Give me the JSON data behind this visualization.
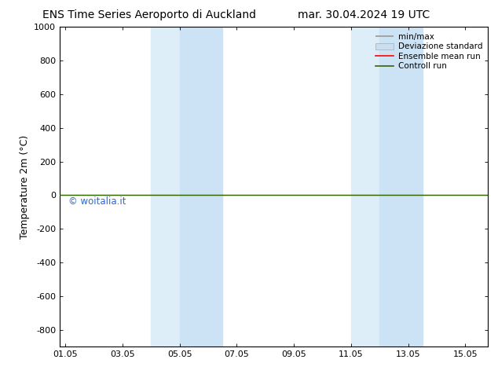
{
  "title_left": "ENS Time Series Aeroporto di Auckland",
  "title_right": "mar. 30.04.2024 19 UTC",
  "ylabel": "Temperature 2m (°C)",
  "ylim": [
    -900,
    1000
  ],
  "yticks": [
    -800,
    -600,
    -400,
    -200,
    0,
    200,
    400,
    600,
    800,
    1000
  ],
  "xtick_labels": [
    "01.05",
    "03.05",
    "05.05",
    "07.05",
    "09.05",
    "11.05",
    "13.05",
    "15.05"
  ],
  "xtick_positions": [
    0,
    2,
    4,
    6,
    8,
    10,
    12,
    14
  ],
  "xlim": [
    -0.2,
    14.8
  ],
  "shade_regions": [
    {
      "x_start": 3.0,
      "x_end": 4.0,
      "color": "#ddeef8"
    },
    {
      "x_start": 4.0,
      "x_end": 5.5,
      "color": "#cce3f5"
    },
    {
      "x_start": 10.0,
      "x_end": 11.0,
      "color": "#ddeef8"
    },
    {
      "x_start": 11.0,
      "x_end": 12.5,
      "color": "#cce3f5"
    }
  ],
  "control_run_y": 0,
  "ensemble_mean_y": 0,
  "watermark": "© woitalia.it",
  "watermark_color": "#3366cc",
  "legend_labels": [
    "min/max",
    "Deviazione standard",
    "Ensemble mean run",
    "Controll run"
  ],
  "legend_line_color": "#999999",
  "legend_patch_color": "#ccddee",
  "legend_patch_edge": "#aaaaaa",
  "ensemble_color": "#ff0000",
  "control_color": "#336600",
  "bg_color": "#ffffff",
  "title_fontsize": 10,
  "axis_label_fontsize": 9,
  "tick_fontsize": 8,
  "legend_fontsize": 7.5
}
